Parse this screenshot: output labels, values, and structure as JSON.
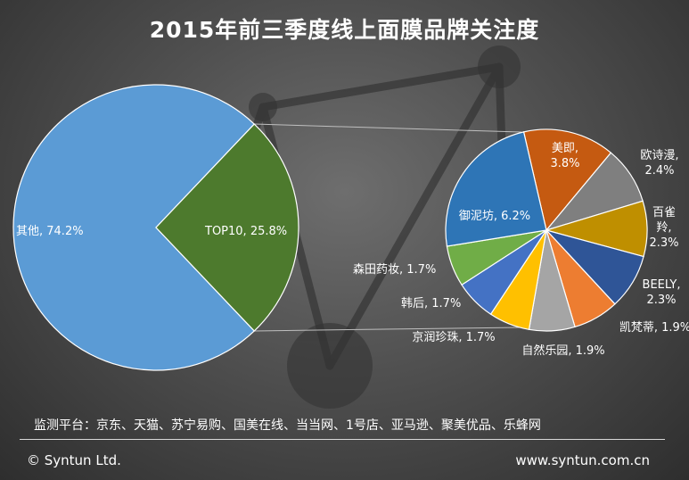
{
  "title": "2015年前三季度线上面膜品牌关注度",
  "platforms": "监测平台：京东、天猫、苏宁易购、国美在线、当当网、1号店、亚马逊、聚美优品、乐蜂网",
  "copyright": "© Syntun Ltd.",
  "website": "www.syntun.com.cn",
  "chart_data": [
    {
      "type": "pie",
      "slices": [
        {
          "label": "其他",
          "value": 74.2,
          "display": "其他, 74.2%",
          "color": "#5b9bd5"
        },
        {
          "label": "TOP10",
          "value": 25.8,
          "display": "TOP10, 25.8%",
          "color": "#4d7a2d"
        }
      ]
    },
    {
      "type": "pie",
      "slices": [
        {
          "label": "美即",
          "value": 3.8,
          "lines": [
            "美即,",
            "3.8%"
          ],
          "color": "#c55a11"
        },
        {
          "label": "欧诗漫",
          "value": 2.4,
          "lines": [
            "欧诗漫,",
            "2.4%"
          ],
          "color": "#7f7f7f"
        },
        {
          "label": "百雀羚",
          "value": 2.3,
          "lines": [
            "百雀",
            "羚,",
            "2.3%"
          ],
          "color": "#bf8f00"
        },
        {
          "label": "BEELY",
          "value": 2.3,
          "lines": [
            "BEELY,",
            "2.3%"
          ],
          "color": "#2f5597"
        },
        {
          "label": "凯梵蒂",
          "value": 1.9,
          "lines": [
            "凯梵蒂, 1.9%"
          ],
          "color": "#ed7d31"
        },
        {
          "label": "自然乐园",
          "value": 1.9,
          "lines": [
            "自然乐园, 1.9%"
          ],
          "color": "#a5a5a5"
        },
        {
          "label": "京润珍珠",
          "value": 1.7,
          "lines": [
            "京润珍珠, 1.7%"
          ],
          "color": "#ffc000"
        },
        {
          "label": "韩后",
          "value": 1.7,
          "lines": [
            "韩后, 1.7%"
          ],
          "color": "#4472c4"
        },
        {
          "label": "森田药妆",
          "value": 1.7,
          "lines": [
            "森田药妆, 1.7%"
          ],
          "color": "#70ad47"
        },
        {
          "label": "御泥坊",
          "value": 6.2,
          "lines": [
            "御泥坊, 6.2%"
          ],
          "color": "#2e75b6"
        }
      ]
    }
  ]
}
